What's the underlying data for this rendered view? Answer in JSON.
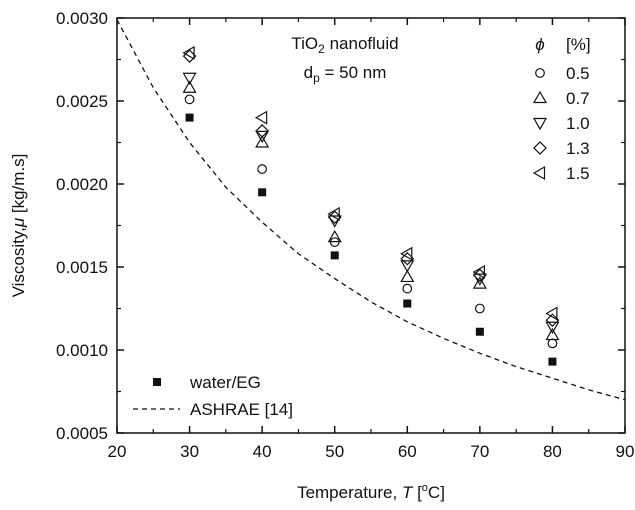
{
  "chart_data": {
    "type": "scatter",
    "title": "",
    "xlabel": {
      "prefix": "Temperature, ",
      "var": "T",
      "unit_open": " [",
      "unit_sup": "o",
      "unit_rest": "C]"
    },
    "ylabel": {
      "prefix": "Viscosity,",
      "var": "μ",
      "unit": " [kg/m.s]"
    },
    "xlim": [
      20,
      90
    ],
    "ylim": [
      0.0005,
      0.003
    ],
    "xticks": [
      "20",
      "30",
      "40",
      "50",
      "60",
      "70",
      "80",
      "90"
    ],
    "yticks": [
      "0.0005",
      "0.0010",
      "0.0015",
      "0.0020",
      "0.0025",
      "0.0030"
    ],
    "grid": false,
    "annotation": {
      "line1_main": "TiO",
      "line1_sub": "2",
      "line1_rest": " nanofluid",
      "line2_main": "d",
      "line2_sub": "p",
      "line2_rest": " = 50 nm"
    },
    "phi_legend": {
      "header_symbol": "ϕ",
      "header_label": "[%]",
      "entries": [
        {
          "label": "0.5",
          "marker": "circle"
        },
        {
          "label": "0.7",
          "marker": "triangle-up"
        },
        {
          "label": "1.0",
          "marker": "triangle-down"
        },
        {
          "label": "1.3",
          "marker": "diamond"
        },
        {
          "label": "1.5",
          "marker": "triangle-left"
        }
      ]
    },
    "base_legend": {
      "entries": [
        {
          "label": "water/EG",
          "marker": "square-filled"
        },
        {
          "label": "ASHRAE [14]",
          "marker": "dashed-line"
        }
      ]
    },
    "series": [
      {
        "name": "water/EG",
        "marker": "square-filled",
        "x": [
          30,
          40,
          50,
          60,
          70,
          80
        ],
        "y": [
          0.0024,
          0.00195,
          0.00157,
          0.00128,
          0.00111,
          0.00093
        ]
      },
      {
        "name": "0.5",
        "marker": "circle",
        "x": [
          30,
          40,
          50,
          60,
          70,
          80
        ],
        "y": [
          0.00251,
          0.00209,
          0.00165,
          0.00137,
          0.00125,
          0.00104
        ]
      },
      {
        "name": "0.7",
        "marker": "triangle-up",
        "x": [
          30,
          40,
          50,
          60,
          70,
          80
        ],
        "y": [
          0.00258,
          0.00225,
          0.00168,
          0.00144,
          0.0014,
          0.00109
        ]
      },
      {
        "name": "1.0",
        "marker": "triangle-down",
        "x": [
          30,
          40,
          50,
          60,
          70,
          80
        ],
        "y": [
          0.00264,
          0.00229,
          0.00178,
          0.00151,
          0.00143,
          0.00114
        ]
      },
      {
        "name": "1.3",
        "marker": "diamond",
        "x": [
          30,
          40,
          50,
          60,
          70,
          80
        ],
        "y": [
          0.00277,
          0.00232,
          0.0018,
          0.00155,
          0.00145,
          0.00118
        ]
      },
      {
        "name": "1.5",
        "marker": "triangle-left",
        "x": [
          30,
          40,
          50,
          60,
          70,
          80
        ],
        "y": [
          0.00279,
          0.0024,
          0.00182,
          0.00158,
          0.00147,
          0.00122
        ]
      },
      {
        "name": "ASHRAE [14]",
        "marker": "dashed-line",
        "x": [
          20,
          25,
          30,
          35,
          40,
          45,
          50,
          55,
          60,
          65,
          70,
          75,
          80,
          85,
          90
        ],
        "y": [
          0.00299,
          0.00258,
          0.00225,
          0.00198,
          0.00177,
          0.00158,
          0.00143,
          0.00129,
          0.00117,
          0.00107,
          0.00098,
          0.0009,
          0.00083,
          0.00076,
          0.0007
        ]
      }
    ]
  }
}
